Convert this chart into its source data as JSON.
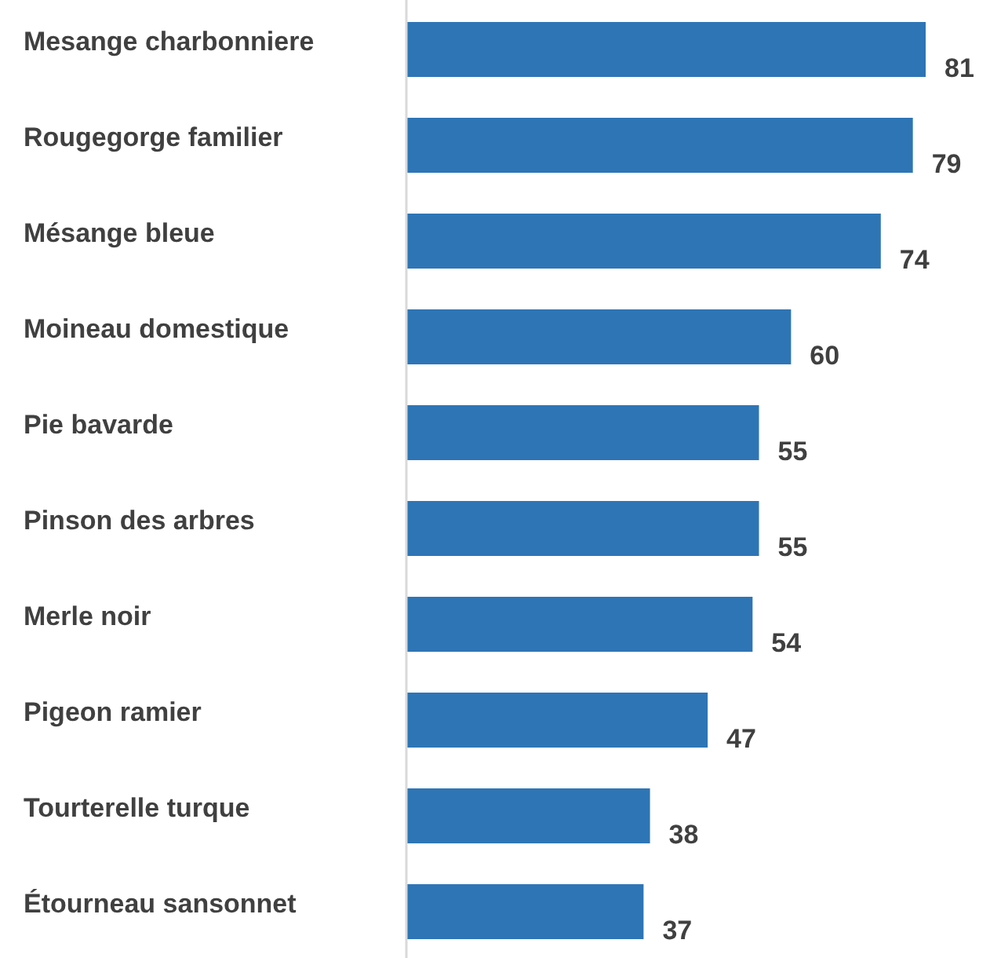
{
  "chart_data": {
    "type": "bar",
    "orientation": "horizontal",
    "categories": [
      "Mesange charbonniere",
      "Rougegorge familier",
      "Mésange bleue",
      "Moineau domestique",
      "Pie bavarde",
      "Pinson des arbres",
      "Merle noir",
      "Pigeon ramier",
      "Tourterelle turque",
      "Étourneau sansonnet"
    ],
    "values": [
      81,
      79,
      74,
      60,
      55,
      55,
      54,
      47,
      38,
      37
    ],
    "color": "#2e75b6",
    "data_labels": true
  }
}
